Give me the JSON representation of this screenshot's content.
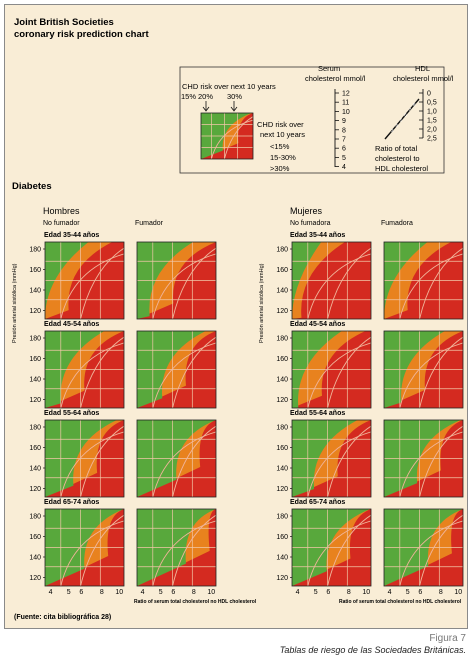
{
  "header": {
    "title_line1": "Joint British Societies",
    "title_line2": "coronary risk prediction chart"
  },
  "legend": {
    "chd_title_line1": "CHD risk over next 10 years",
    "chd_pcts": [
      "15%",
      "20%",
      "30%"
    ],
    "side_title_line1": "CHD risk over",
    "side_title_line2": "next 10 years",
    "levels": [
      "<15%",
      "15-30%",
      ">30%"
    ],
    "serum_title_line1": "Serum",
    "serum_title_line2": "cholesterol mmol/l",
    "serum_ticks": [
      "12",
      "11",
      "10",
      "9",
      "8",
      "7",
      "6",
      "5",
      "4"
    ],
    "hdl_title_line1": "HDL",
    "hdl_title_line2": "cholesterol mmol/l",
    "hdl_ticks": [
      "0",
      "0,5",
      "1,0",
      "1,5",
      "2,0",
      "2,5"
    ],
    "ratio_lines": [
      "Ratio of total",
      "cholesterol to",
      "HDL cholesterol"
    ],
    "ratio_marks": [
      "8",
      "7",
      "6",
      "5",
      "4",
      "3"
    ]
  },
  "section_title": "Diabetes",
  "groups": {
    "men": "Hombres",
    "women": "Mujeres"
  },
  "columns": {
    "men_nonsmoker": "No fumador",
    "men_smoker": "Fumador",
    "women_nonsmoker": "No fumadora",
    "women_smoker": "Fumadora"
  },
  "y_axis_label": "Presión arterial sistólica (mmHg)",
  "y_ticks": [
    "180",
    "160",
    "140",
    "120"
  ],
  "x_ticks": [
    "4",
    "5",
    "6",
    "8",
    "10"
  ],
  "x_axis_label": "Ratio of serum total cholesterol no HDL cholesterol",
  "age_bands": [
    "Edad 35-44 años",
    "Edad 45-54 años",
    "Edad 55-64 años",
    "Edad 65-74 años"
  ],
  "footer_source": "(Fuente: cita bibliográfica 28)",
  "caption_label": "Figura 7",
  "caption_text": "Tablas de riesgo de las Sociedades Británicas.",
  "colors": {
    "low": "#58a83c",
    "mid": "#e8821e",
    "high": "#d42a20",
    "grid": "#f2c8a8",
    "panel_bg": "#f9edd6"
  },
  "risk_levels": {
    "men_nonsmoker": [
      0.3,
      0.5,
      0.66,
      0.8
    ],
    "men_smoker": [
      0.46,
      0.62,
      0.8,
      0.92
    ],
    "women_nonsmoker": [
      0.12,
      0.38,
      0.58,
      0.74
    ],
    "women_smoker": [
      0.3,
      0.52,
      0.72,
      0.86
    ]
  }
}
